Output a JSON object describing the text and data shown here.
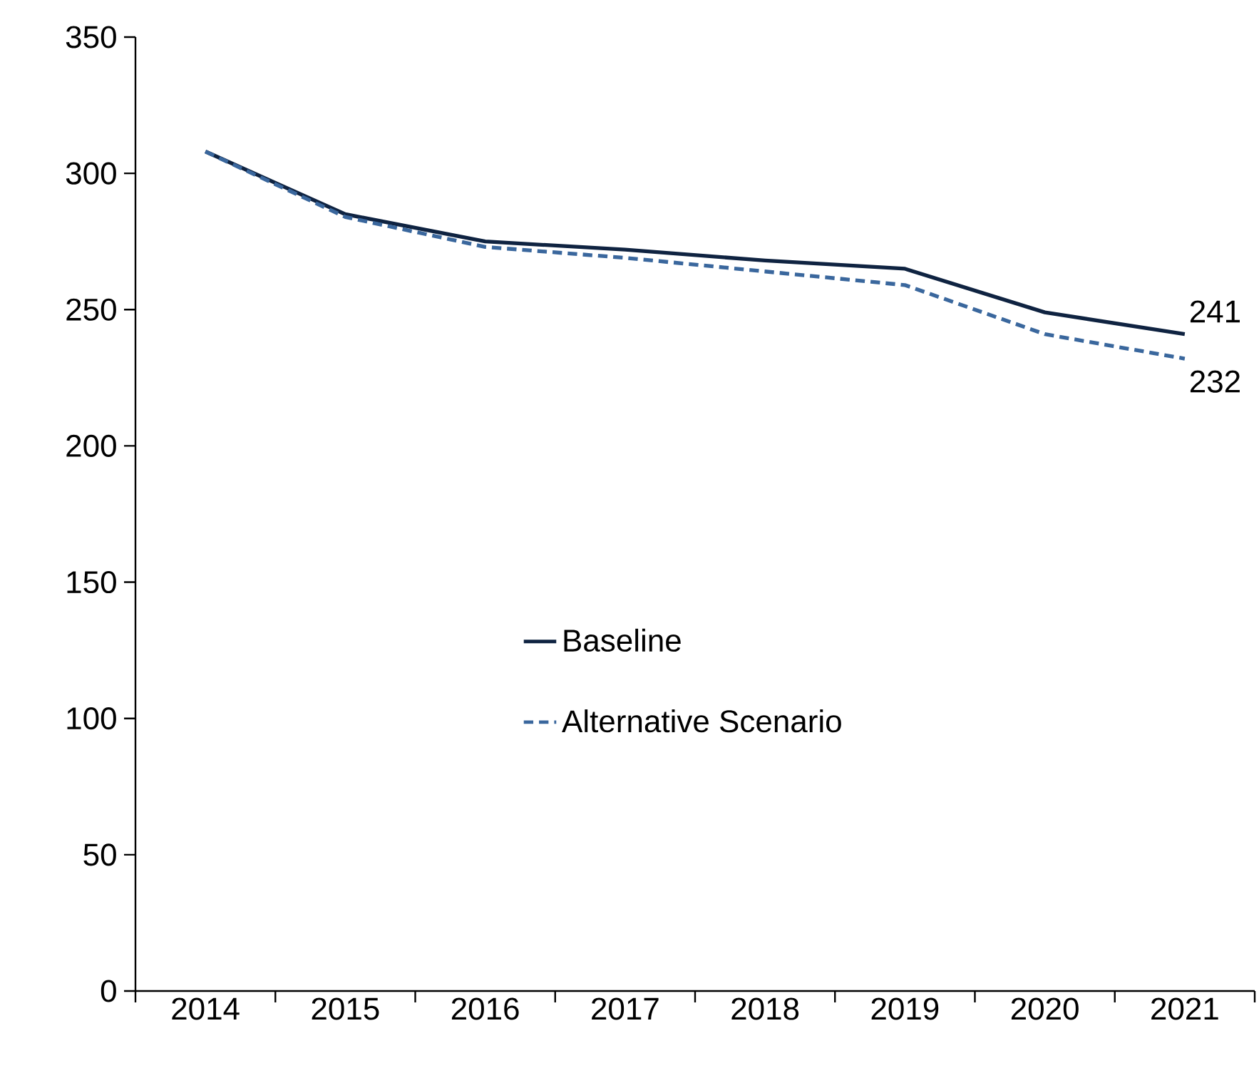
{
  "chart_data": {
    "type": "line",
    "categories": [
      "2014",
      "2015",
      "2016",
      "2017",
      "2018",
      "2019",
      "2020",
      "2021"
    ],
    "series": [
      {
        "name": "Baseline",
        "color": "#0f2341",
        "line_style": "solid",
        "values": [
          308,
          285,
          275,
          272,
          268,
          265,
          249,
          241
        ],
        "value_labels": [
          null,
          null,
          null,
          null,
          null,
          null,
          null,
          "241"
        ]
      },
      {
        "name": "Alternative Scenario",
        "color": "#3a679d",
        "line_style": "dashed",
        "values": [
          308,
          284,
          273,
          269,
          264,
          259,
          241,
          232
        ],
        "value_labels": [
          null,
          null,
          null,
          null,
          null,
          null,
          null,
          "232"
        ]
      }
    ],
    "ylim": [
      0,
      350
    ],
    "yticks": [
      0,
      50,
      100,
      150,
      200,
      250,
      300,
      350
    ],
    "grid": false,
    "legend": "center",
    "marker": "none"
  }
}
